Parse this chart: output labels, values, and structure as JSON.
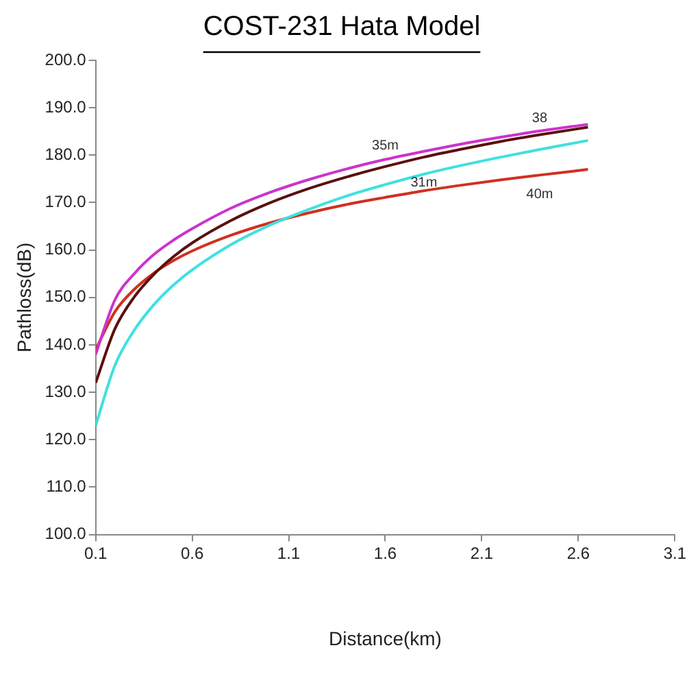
{
  "chart_data": {
    "type": "line",
    "title": "COST-231 Hata Model",
    "xlabel": "Distance(km)",
    "ylabel": "Pathloss(dB)",
    "x": [
      0.1,
      0.2,
      0.3,
      0.4,
      0.5,
      0.6,
      0.8,
      1.0,
      1.2,
      1.4,
      1.6,
      1.8,
      2.0,
      2.2,
      2.4,
      2.65
    ],
    "series": [
      {
        "name": "35m",
        "color": "#cc33cc",
        "values": [
          138,
          149.5,
          155,
          159,
          162,
          164.5,
          168.8,
          172.1,
          174.8,
          177.1,
          179.1,
          180.8,
          182.4,
          183.8,
          185.1,
          186.5
        ]
      },
      {
        "name": "38",
        "color": "#5a1010",
        "values": [
          132,
          143.4,
          150.1,
          154.8,
          158.5,
          161.5,
          166.2,
          169.9,
          172.9,
          175.4,
          177.6,
          179.6,
          181.3,
          182.9,
          184.3,
          185.9
        ]
      },
      {
        "name": "31m",
        "color": "#40e0e0",
        "values": [
          123,
          135.7,
          143.1,
          148.4,
          152.5,
          155.8,
          161.1,
          165.2,
          168.5,
          171.4,
          173.8,
          176.0,
          177.9,
          179.6,
          181.2,
          183.1
        ]
      },
      {
        "name": "40m",
        "color": "#d03020",
        "values": [
          139,
          147.0,
          151.7,
          155.1,
          157.7,
          159.8,
          163.1,
          165.7,
          167.8,
          169.6,
          171.1,
          172.5,
          173.7,
          174.8,
          175.8,
          177.0
        ]
      }
    ],
    "xlim": [
      0.1,
      3.1
    ],
    "xticks": [
      0.1,
      0.6,
      1.1,
      1.6,
      2.1,
      2.6,
      3.1
    ],
    "ylim": [
      100,
      200
    ],
    "yticks": [
      {
        "value": 100,
        "label": "100.0"
      },
      {
        "value": 110,
        "label": "110.0"
      },
      {
        "value": 120,
        "label": "120.0"
      },
      {
        "value": 130,
        "label": "130.0"
      },
      {
        "value": 140,
        "label": "140.0"
      },
      {
        "value": 150,
        "label": "150.0"
      },
      {
        "value": 160,
        "label": "160.0"
      },
      {
        "value": 170,
        "label": "170.0"
      },
      {
        "value": 180,
        "label": "180.0"
      },
      {
        "value": 190,
        "label": "190.0"
      },
      {
        "value": 200,
        "label": "200.0"
      }
    ],
    "grid": false,
    "legend": false,
    "marker": "none",
    "line_style": "solid"
  }
}
